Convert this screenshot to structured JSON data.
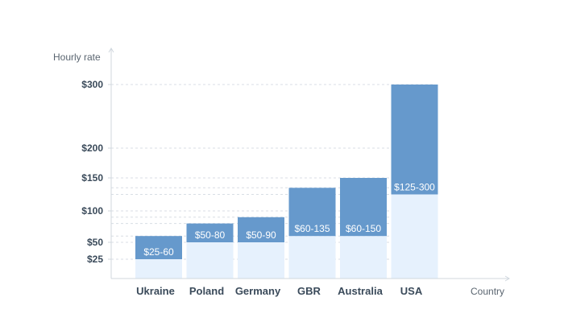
{
  "chart_data": {
    "type": "bar",
    "title": "",
    "xlabel": "Country",
    "ylabel": "Hourly rate",
    "categories": [
      "Ukraine",
      "Poland",
      "Germany",
      "GBR",
      "Australia",
      "USA"
    ],
    "ranges": [
      {
        "min": 25,
        "max": 60,
        "label": "$25-60"
      },
      {
        "min": 50,
        "max": 80,
        "label": "$50-80"
      },
      {
        "min": 50,
        "max": 90,
        "label": "$50-90"
      },
      {
        "min": 60,
        "max": 135,
        "label": "$60-135"
      },
      {
        "min": 60,
        "max": 150,
        "label": "$60-150"
      },
      {
        "min": 125,
        "max": 300,
        "label": "$125-300"
      }
    ],
    "y_ticks": [
      {
        "value": 25,
        "label": "$25"
      },
      {
        "value": 50,
        "label": "$50"
      },
      {
        "value": 100,
        "label": "$100"
      },
      {
        "value": 150,
        "label": "$150"
      },
      {
        "value": 200,
        "label": "$200"
      },
      {
        "value": 300,
        "label": "$300"
      }
    ],
    "ylim": [
      0,
      300
    ],
    "grid": true,
    "colors": {
      "range_fill": "#6699cc",
      "base_fill": "#e6f1fd",
      "axis": "#d0d7de",
      "grid": "#d8dee4"
    }
  }
}
